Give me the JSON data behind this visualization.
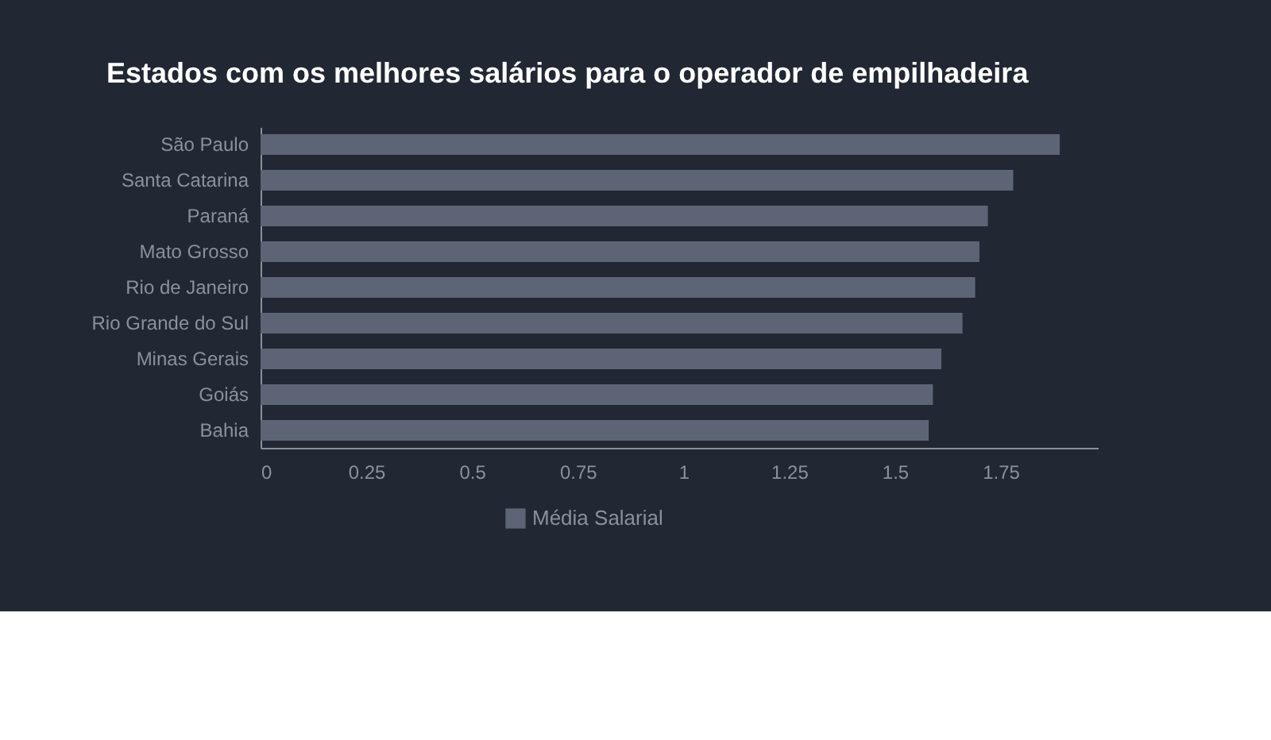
{
  "chart_data": {
    "type": "bar",
    "orientation": "horizontal",
    "title": "Estados com os melhores salários para o operador de empilhadeira",
    "categories": [
      "São Paulo",
      "Santa Catarina",
      "Paraná",
      "Mato Grosso",
      "Rio de Janeiro",
      "Rio Grande do Sul",
      "Minas Gerais",
      "Goiás",
      "Bahia"
    ],
    "series": [
      {
        "name": "Média Salarial",
        "color": "#5d6475",
        "values": [
          1.89,
          1.78,
          1.72,
          1.7,
          1.69,
          1.66,
          1.61,
          1.59,
          1.58
        ]
      }
    ],
    "xlim": [
      0,
      1.98
    ],
    "xticks": [
      0,
      0.25,
      0.5,
      0.75,
      1,
      1.25,
      1.5,
      1.75
    ],
    "grid": false,
    "legend": "bottom"
  }
}
